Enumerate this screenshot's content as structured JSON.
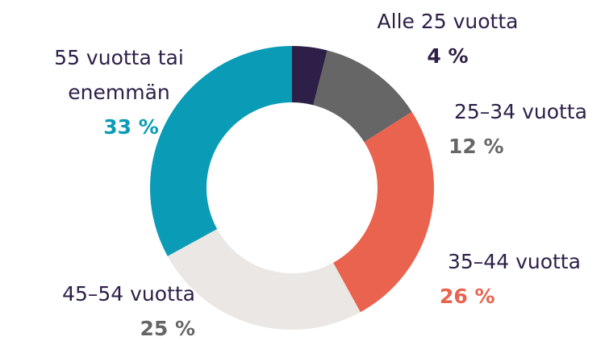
{
  "chart_data": {
    "type": "donut",
    "categories": [
      "Alle 25 vuotta",
      "25–34 vuotta",
      "35–44 vuotta",
      "45–54 vuotta",
      "55 vuotta tai enemmän"
    ],
    "values": [
      4,
      12,
      26,
      25,
      33
    ],
    "value_labels": [
      "4 %",
      "12 %",
      "26 %",
      "25 %",
      "33 %"
    ],
    "colors": [
      "#2d1f47",
      "#666666",
      "#e9634e",
      "#ebe7e4",
      "#0a9cb6"
    ],
    "label_colors": [
      "#2d1f47",
      "#666666",
      "#e9634e",
      "#666666",
      "#0a9cb6"
    ]
  }
}
